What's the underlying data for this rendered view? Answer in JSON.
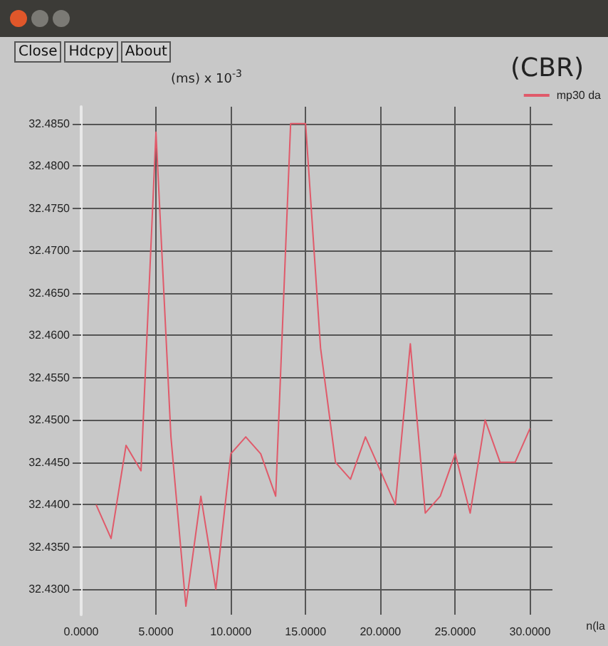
{
  "chart_data": {
    "type": "line",
    "title": "(CBR)",
    "ylabel": "(ms) x 10$^{-3}$",
    "xlabel": "n(la",
    "annotations": [
      "Close",
      "Hdcpy",
      "About"
    ],
    "x": [
      1,
      2,
      3,
      4,
      5,
      6,
      7,
      8,
      9,
      10,
      11,
      12,
      13,
      14,
      15,
      16,
      17,
      18,
      19,
      20,
      21,
      22,
      23,
      24,
      25,
      26,
      27,
      28,
      29,
      30
    ],
    "series": [
      {
        "name": "mp30 da",
        "color": "#e05a6a",
        "values": [
          32.44,
          32.436,
          32.447,
          32.444,
          32.484,
          32.448,
          32.428,
          32.441,
          32.43,
          32.446,
          32.448,
          32.446,
          32.441,
          32.485,
          32.485,
          32.4585,
          32.445,
          32.443,
          32.448,
          32.444,
          32.44,
          32.459,
          32.439,
          32.441,
          32.446,
          32.439,
          32.45,
          32.445,
          32.445,
          32.449
        ]
      }
    ],
    "xlim": [
      0,
      31.5
    ],
    "xticks": [
      {
        "value": 0,
        "label": "0.0000"
      },
      {
        "value": 5,
        "label": "5.0000"
      },
      {
        "value": 10,
        "label": "10.0000"
      },
      {
        "value": 15,
        "label": "15.0000"
      },
      {
        "value": 20,
        "label": "20.0000"
      },
      {
        "value": 25,
        "label": "25.0000"
      },
      {
        "value": 30,
        "label": "30.0000"
      }
    ],
    "ylim": [
      32.427,
      32.487
    ],
    "yticks": [
      {
        "value": 32.43,
        "label": "32.4300"
      },
      {
        "value": 32.435,
        "label": "32.4350"
      },
      {
        "value": 32.44,
        "label": "32.4400"
      },
      {
        "value": 32.445,
        "label": "32.4450"
      },
      {
        "value": 32.45,
        "label": "32.4500"
      },
      {
        "value": 32.455,
        "label": "32.4550"
      },
      {
        "value": 32.46,
        "label": "32.4600"
      },
      {
        "value": 32.465,
        "label": "32.4650"
      },
      {
        "value": 32.47,
        "label": "32.4700"
      },
      {
        "value": 32.475,
        "label": "32.4750"
      },
      {
        "value": 32.48,
        "label": "32.4800"
      },
      {
        "value": 32.485,
        "label": "32.4850"
      }
    ],
    "grid": true,
    "legend": "top right",
    "marker": "none",
    "line_style": "solid"
  }
}
